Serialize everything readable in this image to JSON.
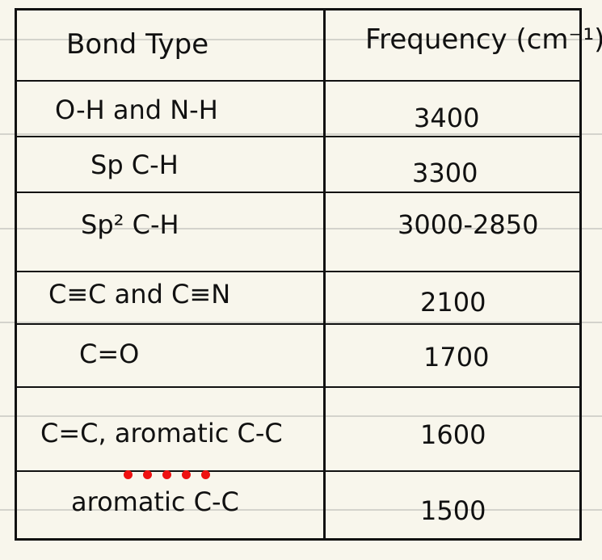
{
  "header": {
    "bond_type": "Bond Type",
    "frequency": "Frequency (cm⁻¹)"
  },
  "rows": [
    {
      "bond": "O-H and N-H",
      "frequency": "3400"
    },
    {
      "bond": "Sp C-H",
      "frequency": "3300"
    },
    {
      "bond": "Sp² C-H",
      "frequency": "3000-2850"
    },
    {
      "bond": "C≡C and C≡N",
      "frequency": "2100"
    },
    {
      "bond": "C=O",
      "frequency": "1700"
    },
    {
      "bond": "C=C, aromatic C-C",
      "frequency": "1600"
    },
    {
      "bond": "aromatic C-C",
      "frequency": "1500"
    }
  ],
  "colors": {
    "paper": "#f8f6ec",
    "ink": "#111111",
    "rule_lines": "#d4d3cc",
    "dot_accent": "#ee1111"
  }
}
